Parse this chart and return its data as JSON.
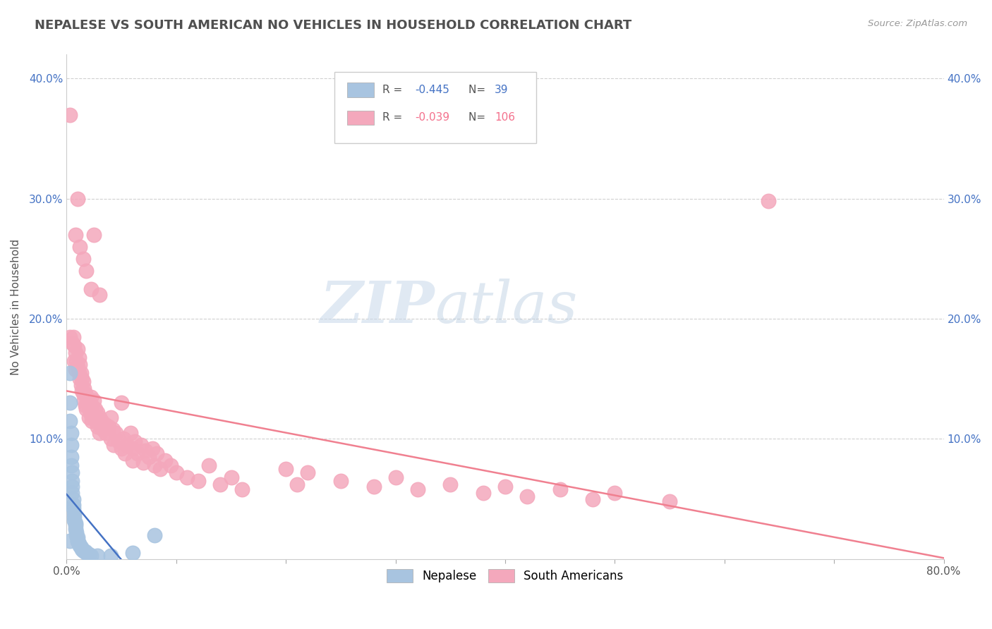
{
  "title": "NEPALESE VS SOUTH AMERICAN NO VEHICLES IN HOUSEHOLD CORRELATION CHART",
  "source": "Source: ZipAtlas.com",
  "ylabel": "No Vehicles in Household",
  "xlim": [
    0.0,
    0.8
  ],
  "ylim": [
    0.0,
    0.42
  ],
  "xticks": [
    0.0,
    0.1,
    0.2,
    0.3,
    0.4,
    0.5,
    0.6,
    0.7,
    0.8
  ],
  "xticklabels": [
    "0.0%",
    "",
    "",
    "",
    "",
    "",
    "",
    "",
    "80.0%"
  ],
  "yticks": [
    0.0,
    0.1,
    0.2,
    0.3,
    0.4
  ],
  "yticklabels_left": [
    "",
    "10.0%",
    "20.0%",
    "30.0%",
    "40.0%"
  ],
  "yticklabels_right": [
    "",
    "10.0%",
    "20.0%",
    "30.0%",
    "40.0%"
  ],
  "watermark": "ZIPatlas",
  "nepalese_color": "#a8c4e0",
  "south_american_color": "#f4a8bc",
  "nepalese_line_color": "#4472c4",
  "south_american_line_color": "#f08090",
  "grid_color": "#d0d0d0",
  "title_color": "#505050",
  "tick_color": "#4472c4",
  "nepalese_scatter": [
    [
      0.003,
      0.155
    ],
    [
      0.003,
      0.13
    ],
    [
      0.003,
      0.115
    ],
    [
      0.004,
      0.105
    ],
    [
      0.004,
      0.095
    ],
    [
      0.004,
      0.085
    ],
    [
      0.004,
      0.078
    ],
    [
      0.005,
      0.072
    ],
    [
      0.005,
      0.065
    ],
    [
      0.005,
      0.06
    ],
    [
      0.005,
      0.055
    ],
    [
      0.006,
      0.05
    ],
    [
      0.006,
      0.045
    ],
    [
      0.006,
      0.042
    ],
    [
      0.007,
      0.038
    ],
    [
      0.007,
      0.035
    ],
    [
      0.007,
      0.032
    ],
    [
      0.008,
      0.03
    ],
    [
      0.008,
      0.028
    ],
    [
      0.008,
      0.025
    ],
    [
      0.009,
      0.022
    ],
    [
      0.009,
      0.02
    ],
    [
      0.01,
      0.018
    ],
    [
      0.01,
      0.015
    ],
    [
      0.011,
      0.013
    ],
    [
      0.012,
      0.011
    ],
    [
      0.013,
      0.01
    ],
    [
      0.014,
      0.008
    ],
    [
      0.015,
      0.007
    ],
    [
      0.017,
      0.006
    ],
    [
      0.018,
      0.005
    ],
    [
      0.02,
      0.004
    ],
    [
      0.022,
      0.003
    ],
    [
      0.028,
      0.003
    ],
    [
      0.04,
      0.003
    ],
    [
      0.003,
      0.015
    ],
    [
      0.01,
      0.015
    ],
    [
      0.06,
      0.005
    ],
    [
      0.08,
      0.02
    ]
  ],
  "south_american_scatter": [
    [
      0.003,
      0.37
    ],
    [
      0.008,
      0.27
    ],
    [
      0.012,
      0.26
    ],
    [
      0.015,
      0.25
    ],
    [
      0.018,
      0.24
    ],
    [
      0.022,
      0.225
    ],
    [
      0.025,
      0.27
    ],
    [
      0.03,
      0.22
    ],
    [
      0.01,
      0.3
    ],
    [
      0.003,
      0.185
    ],
    [
      0.005,
      0.18
    ],
    [
      0.006,
      0.185
    ],
    [
      0.007,
      0.178
    ],
    [
      0.007,
      0.165
    ],
    [
      0.008,
      0.172
    ],
    [
      0.008,
      0.158
    ],
    [
      0.009,
      0.165
    ],
    [
      0.01,
      0.175
    ],
    [
      0.01,
      0.16
    ],
    [
      0.011,
      0.168
    ],
    [
      0.011,
      0.155
    ],
    [
      0.012,
      0.162
    ],
    [
      0.012,
      0.15
    ],
    [
      0.013,
      0.155
    ],
    [
      0.013,
      0.145
    ],
    [
      0.014,
      0.15
    ],
    [
      0.014,
      0.14
    ],
    [
      0.015,
      0.148
    ],
    [
      0.015,
      0.138
    ],
    [
      0.016,
      0.142
    ],
    [
      0.016,
      0.132
    ],
    [
      0.017,
      0.138
    ],
    [
      0.017,
      0.128
    ],
    [
      0.018,
      0.135
    ],
    [
      0.018,
      0.125
    ],
    [
      0.019,
      0.13
    ],
    [
      0.02,
      0.128
    ],
    [
      0.02,
      0.118
    ],
    [
      0.021,
      0.125
    ],
    [
      0.022,
      0.135
    ],
    [
      0.022,
      0.12
    ],
    [
      0.023,
      0.128
    ],
    [
      0.023,
      0.115
    ],
    [
      0.025,
      0.132
    ],
    [
      0.025,
      0.118
    ],
    [
      0.026,
      0.125
    ],
    [
      0.027,
      0.115
    ],
    [
      0.028,
      0.122
    ],
    [
      0.028,
      0.11
    ],
    [
      0.03,
      0.118
    ],
    [
      0.03,
      0.105
    ],
    [
      0.032,
      0.115
    ],
    [
      0.033,
      0.108
    ],
    [
      0.035,
      0.112
    ],
    [
      0.036,
      0.105
    ],
    [
      0.038,
      0.11
    ],
    [
      0.04,
      0.118
    ],
    [
      0.04,
      0.1
    ],
    [
      0.042,
      0.108
    ],
    [
      0.043,
      0.095
    ],
    [
      0.045,
      0.105
    ],
    [
      0.047,
      0.098
    ],
    [
      0.05,
      0.13
    ],
    [
      0.05,
      0.092
    ],
    [
      0.052,
      0.1
    ],
    [
      0.053,
      0.088
    ],
    [
      0.055,
      0.095
    ],
    [
      0.058,
      0.105
    ],
    [
      0.06,
      0.092
    ],
    [
      0.06,
      0.082
    ],
    [
      0.062,
      0.098
    ],
    [
      0.065,
      0.088
    ],
    [
      0.068,
      0.095
    ],
    [
      0.07,
      0.08
    ],
    [
      0.072,
      0.09
    ],
    [
      0.075,
      0.085
    ],
    [
      0.078,
      0.092
    ],
    [
      0.08,
      0.078
    ],
    [
      0.082,
      0.088
    ],
    [
      0.085,
      0.075
    ],
    [
      0.09,
      0.082
    ],
    [
      0.095,
      0.078
    ],
    [
      0.1,
      0.072
    ],
    [
      0.11,
      0.068
    ],
    [
      0.12,
      0.065
    ],
    [
      0.13,
      0.078
    ],
    [
      0.14,
      0.062
    ],
    [
      0.15,
      0.068
    ],
    [
      0.16,
      0.058
    ],
    [
      0.2,
      0.075
    ],
    [
      0.21,
      0.062
    ],
    [
      0.22,
      0.072
    ],
    [
      0.25,
      0.065
    ],
    [
      0.28,
      0.06
    ],
    [
      0.3,
      0.068
    ],
    [
      0.32,
      0.058
    ],
    [
      0.35,
      0.062
    ],
    [
      0.38,
      0.055
    ],
    [
      0.4,
      0.06
    ],
    [
      0.42,
      0.052
    ],
    [
      0.45,
      0.058
    ],
    [
      0.48,
      0.05
    ],
    [
      0.5,
      0.055
    ],
    [
      0.55,
      0.048
    ],
    [
      0.64,
      0.298
    ]
  ]
}
